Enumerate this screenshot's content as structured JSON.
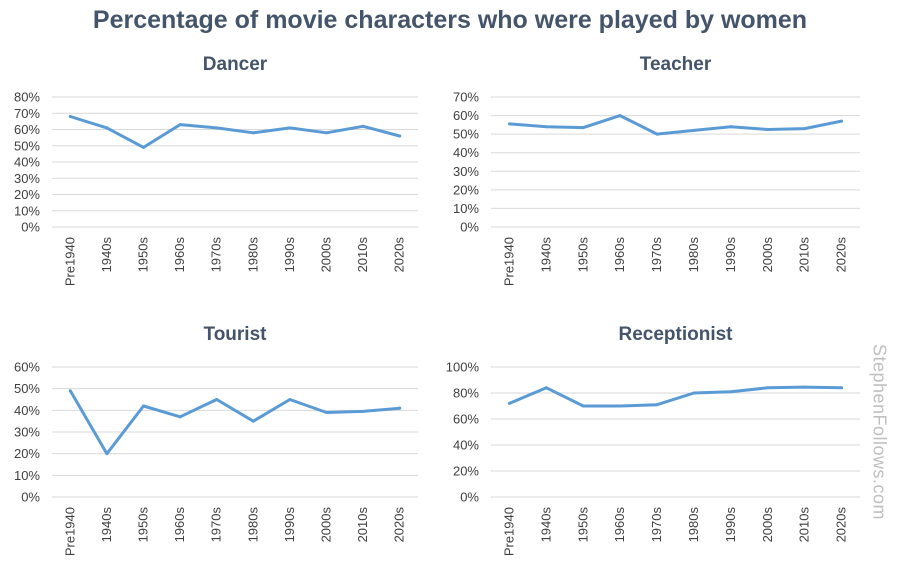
{
  "title": "Percentage of movie characters who were played by women",
  "watermark": "StephenFollows.com",
  "colors": {
    "title": "#44546a",
    "line": "#5b9bd5",
    "grid": "#d9d9d9",
    "watermark": "#bfbfbf"
  },
  "chart_data": [
    {
      "type": "line",
      "title": "Dancer",
      "categories": [
        "Pre1940",
        "1940s",
        "1950s",
        "1960s",
        "1970s",
        "1980s",
        "1990s",
        "2000s",
        "2010s",
        "2020s"
      ],
      "values": [
        68,
        61,
        49,
        63,
        61,
        58,
        61,
        58,
        62,
        56
      ],
      "yticks": [
        "0%",
        "10%",
        "20%",
        "30%",
        "40%",
        "50%",
        "60%",
        "70%",
        "80%"
      ],
      "ylim": [
        0,
        80
      ],
      "xlabel": "",
      "ylabel": "",
      "grid": true
    },
    {
      "type": "line",
      "title": "Teacher",
      "categories": [
        "Pre1940",
        "1940s",
        "1950s",
        "1960s",
        "1970s",
        "1980s",
        "1990s",
        "2000s",
        "2010s",
        "2020s"
      ],
      "values": [
        55.5,
        54,
        53.5,
        60,
        50,
        52,
        54,
        52.5,
        53,
        57
      ],
      "yticks": [
        "0%",
        "10%",
        "20%",
        "30%",
        "40%",
        "50%",
        "60%",
        "70%"
      ],
      "ylim": [
        0,
        70
      ],
      "xlabel": "",
      "ylabel": "",
      "grid": true
    },
    {
      "type": "line",
      "title": "Tourist",
      "categories": [
        "Pre1940",
        "1940s",
        "1950s",
        "1960s",
        "1970s",
        "1980s",
        "1990s",
        "2000s",
        "2010s",
        "2020s"
      ],
      "values": [
        49,
        20,
        42,
        37,
        45,
        35,
        45,
        39,
        39.5,
        41
      ],
      "yticks": [
        "0%",
        "10%",
        "20%",
        "30%",
        "40%",
        "50%",
        "60%"
      ],
      "ylim": [
        0,
        60
      ],
      "xlabel": "",
      "ylabel": "",
      "grid": true
    },
    {
      "type": "line",
      "title": "Receptionist",
      "categories": [
        "Pre1940",
        "1940s",
        "1950s",
        "1960s",
        "1970s",
        "1980s",
        "1990s",
        "2000s",
        "2010s",
        "2020s"
      ],
      "values": [
        72,
        84,
        70,
        70,
        71,
        80,
        81,
        84,
        84.5,
        84
      ],
      "yticks": [
        "0%",
        "20%",
        "40%",
        "60%",
        "80%",
        "100%"
      ],
      "ylim": [
        0,
        100
      ],
      "xlabel": "",
      "ylabel": "",
      "grid": true
    }
  ]
}
